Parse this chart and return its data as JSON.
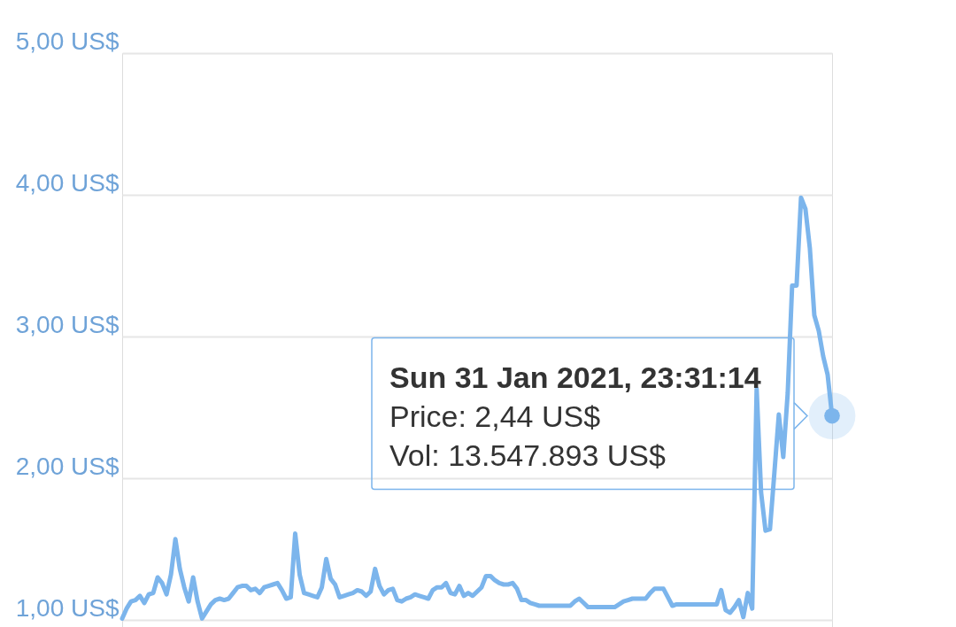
{
  "chart_data": {
    "type": "line",
    "categories": [
      null,
      null,
      null,
      null,
      null,
      null,
      null,
      null,
      null,
      null,
      null,
      null,
      null,
      null,
      null,
      null,
      null,
      null,
      null,
      null,
      null,
      null,
      null,
      null,
      null,
      null,
      null,
      null,
      null,
      null,
      null,
      null,
      null,
      null,
      null,
      null,
      null,
      null,
      null,
      null,
      null,
      null,
      null,
      null,
      null,
      null,
      null,
      null,
      null,
      null,
      null,
      null,
      null,
      null,
      null,
      null,
      null,
      null,
      null,
      null,
      null,
      null,
      null,
      null,
      null,
      null,
      null,
      null,
      null,
      null,
      null,
      null,
      null,
      null,
      null,
      null,
      null,
      null,
      null,
      null,
      null,
      null,
      null,
      null,
      null,
      null,
      null,
      null,
      null,
      null,
      null,
      null,
      null,
      null,
      null,
      null,
      null,
      null,
      null,
      null,
      null,
      null,
      null,
      null,
      null,
      null,
      null,
      null,
      null,
      null,
      null,
      null,
      null,
      null,
      null,
      null,
      null,
      null,
      null,
      null,
      null,
      null,
      null,
      null,
      null,
      null,
      null,
      null,
      null,
      null,
      null,
      null,
      null,
      null,
      null,
      null,
      null,
      null,
      null,
      null,
      null,
      null,
      null,
      null,
      null,
      null,
      null,
      null,
      null,
      null,
      null,
      null,
      null,
      null,
      null,
      null,
      null,
      null,
      null,
      null,
      null
    ],
    "series": [
      {
        "color": "#7cb5ec",
        "values": [
          1.01,
          1.08,
          1.13,
          1.14,
          1.17,
          1.12,
          1.18,
          1.19,
          1.3,
          1.26,
          1.18,
          1.32,
          1.57,
          1.36,
          1.23,
          1.13,
          1.3,
          1.13,
          1.01,
          1.06,
          1.11,
          1.14,
          1.15,
          1.14,
          1.15,
          1.19,
          1.23,
          1.24,
          1.24,
          1.21,
          1.22,
          1.19,
          1.23,
          1.24,
          1.25,
          1.26,
          1.21,
          1.15,
          1.16,
          1.61,
          1.32,
          1.19,
          1.18,
          1.17,
          1.16,
          1.23,
          1.43,
          1.29,
          1.25,
          1.16,
          1.17,
          1.18,
          1.19,
          1.21,
          1.2,
          1.17,
          1.2,
          1.36,
          1.24,
          1.18,
          1.21,
          1.22,
          1.14,
          1.13,
          1.15,
          1.16,
          1.18,
          1.17,
          1.16,
          1.15,
          1.21,
          1.23,
          1.23,
          1.26,
          1.19,
          1.18,
          1.24,
          1.17,
          1.19,
          1.17,
          1.2,
          1.23,
          1.31,
          1.31,
          1.28,
          1.26,
          1.25,
          1.25,
          1.26,
          1.22,
          1.14,
          1.14,
          1.12,
          1.11,
          1.1,
          1.1,
          1.1,
          1.1,
          1.1,
          1.1,
          1.1,
          1.1,
          1.13,
          1.15,
          1.12,
          1.09,
          1.09,
          1.09,
          1.09,
          1.09,
          1.09,
          1.09,
          1.11,
          1.13,
          1.14,
          1.15,
          1.15,
          1.15,
          1.15,
          1.19,
          1.22,
          1.22,
          1.22,
          1.16,
          1.1,
          1.11,
          1.11,
          1.11,
          1.11,
          1.11,
          1.11,
          1.11,
          1.11,
          1.11,
          1.11,
          1.21,
          1.07,
          1.05,
          1.09,
          1.14,
          1.02,
          1.19,
          1.08,
          2.63,
          1.9,
          1.63,
          1.64,
          2.04,
          2.45,
          2.15,
          2.6,
          3.36,
          3.36,
          3.98,
          3.9,
          3.62,
          3.15,
          3.04,
          2.86,
          2.73,
          2.44
        ]
      },
      {
        "type": "scatter",
        "color": "#7cb5ec",
        "values": [
          null,
          null,
          null,
          null,
          null,
          null,
          null,
          null,
          null,
          null,
          null,
          null,
          null,
          null,
          null,
          null,
          null,
          null,
          null,
          null,
          null,
          null,
          null,
          null,
          null,
          null,
          null,
          null,
          null,
          null,
          null,
          null,
          null,
          null,
          null,
          null,
          null,
          null,
          null,
          null,
          null,
          null,
          null,
          null,
          null,
          null,
          null,
          null,
          null,
          null,
          null,
          null,
          null,
          null,
          null,
          null,
          null,
          null,
          null,
          null,
          null,
          null,
          null,
          null,
          null,
          null,
          null,
          null,
          null,
          null,
          null,
          null,
          null,
          null,
          null,
          null,
          null,
          null,
          null,
          null,
          null,
          null,
          null,
          null,
          null,
          null,
          null,
          null,
          null,
          null,
          null,
          null,
          null,
          null,
          null,
          null,
          null,
          null,
          null,
          null,
          null,
          null,
          null,
          null,
          null,
          null,
          null,
          null,
          null,
          null,
          null,
          null,
          null,
          null,
          null,
          null,
          null,
          null,
          null,
          null,
          null,
          null,
          null,
          null,
          null,
          null,
          null,
          null,
          null,
          null,
          null,
          null,
          null,
          null,
          null,
          null,
          null,
          null,
          null,
          null,
          null,
          null,
          null,
          null,
          null,
          null,
          null,
          null,
          null,
          null,
          null,
          null,
          null,
          null,
          null,
          null,
          null,
          null,
          null,
          null,
          2.44
        ]
      }
    ],
    "ylim": [
      0.95,
      5
    ],
    "yticks": [
      {
        "value": 1,
        "label": "1,00 US$"
      },
      {
        "value": 2,
        "label": "2,00 US$"
      },
      {
        "value": 3,
        "label": "3,00 US$"
      },
      {
        "value": 4,
        "label": "4,00 US$"
      },
      {
        "value": 5,
        "label": "5,00 US$"
      }
    ],
    "grid": "y",
    "annotations": [
      "Sun 31 Jan 2021, 23:31:14",
      "Price: 2,44 US$",
      "Vol: 13.547.893 US$"
    ]
  }
}
